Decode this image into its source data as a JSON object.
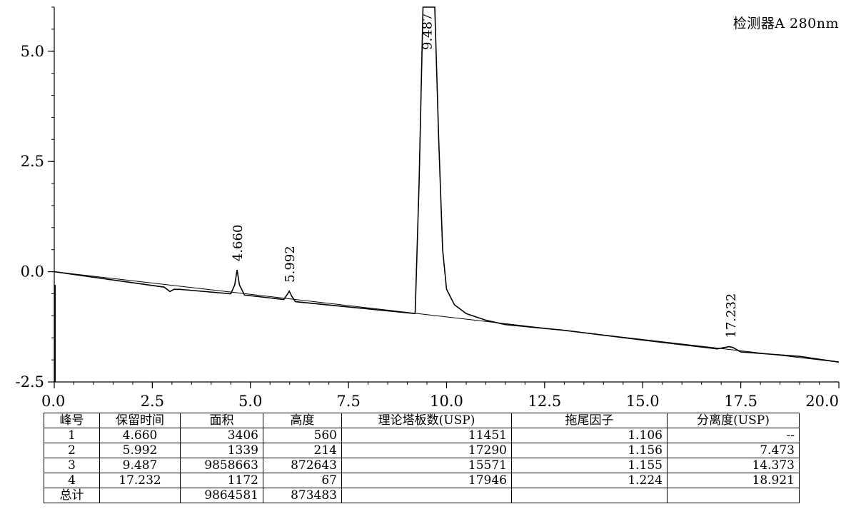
{
  "detector_label": "检测器A 280nm",
  "chart_data": {
    "type": "line",
    "xlim": [
      0.0,
      20.0
    ],
    "ylim": [
      -2.5,
      6.0
    ],
    "x_ticks": [
      0.0,
      2.5,
      5.0,
      7.5,
      10.0,
      12.5,
      15.0,
      17.5,
      20.0
    ],
    "x_tick_labels": [
      "0.0",
      "2.5",
      "5.0",
      "7.5",
      "10.0",
      "12.5",
      "15.0",
      "17.5",
      "20.0"
    ],
    "y_ticks": [
      -2.5,
      0.0,
      2.5,
      5.0
    ],
    "y_tick_labels": [
      "-2.5",
      "0.0",
      "2.5",
      "5.0"
    ],
    "baseline": {
      "x": [
        0.0,
        20.0
      ],
      "y": [
        0.0,
        -2.05
      ]
    },
    "trace": {
      "x": [
        0.0,
        2.8,
        2.95,
        3.05,
        3.2,
        4.5,
        4.6,
        4.66,
        4.72,
        4.85,
        5.85,
        5.95,
        5.99,
        6.05,
        6.15,
        9.2,
        9.3,
        9.4,
        9.45,
        9.6,
        9.7,
        9.8,
        9.9,
        10.0,
        10.2,
        10.5,
        11.0,
        11.5,
        13.0,
        15.0,
        16.9,
        17.2,
        17.3,
        17.5,
        19.0,
        20.0
      ],
      "y": [
        0.0,
        -0.35,
        -0.45,
        -0.4,
        -0.4,
        -0.5,
        -0.3,
        0.04,
        -0.3,
        -0.53,
        -0.63,
        -0.5,
        -0.44,
        -0.55,
        -0.68,
        -0.95,
        2.0,
        6.0,
        6.0,
        6.0,
        6.0,
        3.0,
        0.5,
        -0.4,
        -0.75,
        -0.95,
        -1.1,
        -1.2,
        -1.33,
        -1.55,
        -1.75,
        -1.7,
        -1.72,
        -1.82,
        -1.92,
        -2.05
      ]
    },
    "peak_labels": [
      {
        "label": "4.660",
        "x": 4.66,
        "y": 0.04
      },
      {
        "label": "5.992",
        "x": 5.992,
        "y": -0.44
      },
      {
        "label": "9.487",
        "x": 9.487,
        "y": 4.9
      },
      {
        "label": "17.232",
        "x": 17.232,
        "y": -1.7
      }
    ]
  },
  "table": {
    "headers": [
      "峰号",
      "保留时间",
      "面积",
      "高度",
      "理论塔板数(USP)",
      "拖尾因子",
      "分离度(USP)"
    ],
    "rows": [
      [
        "1",
        "4.660",
        "3406",
        "560",
        "11451",
        "1.106",
        "--"
      ],
      [
        "2",
        "5.992",
        "1339",
        "214",
        "17290",
        "1.156",
        "7.473"
      ],
      [
        "3",
        "9.487",
        "9858663",
        "872643",
        "15571",
        "1.155",
        "14.373"
      ],
      [
        "4",
        "17.232",
        "1172",
        "67",
        "17946",
        "1.224",
        "18.921"
      ],
      [
        "总计",
        "",
        "9864581",
        "873483",
        "",
        "",
        ""
      ]
    ]
  }
}
